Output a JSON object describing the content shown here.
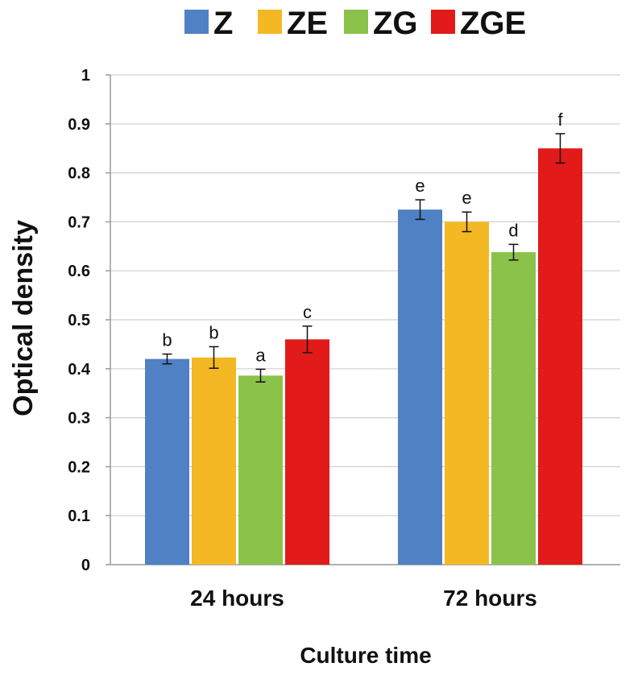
{
  "chart_data": {
    "type": "bar",
    "categories": [
      "24 hours",
      "72 hours"
    ],
    "series": [
      {
        "name": "Z",
        "color": "#4f81c4",
        "values": [
          0.42,
          0.725
        ],
        "errors": [
          0.01,
          0.02
        ],
        "labels": [
          "b",
          "e"
        ]
      },
      {
        "name": "ZE",
        "color": "#f3b823",
        "values": [
          0.423,
          0.7
        ],
        "errors": [
          0.022,
          0.02
        ],
        "labels": [
          "b",
          "e"
        ]
      },
      {
        "name": "ZG",
        "color": "#8ac24a",
        "values": [
          0.386,
          0.638
        ],
        "errors": [
          0.013,
          0.016
        ],
        "labels": [
          "a",
          "d"
        ]
      },
      {
        "name": "ZGE",
        "color": "#e21a1a",
        "values": [
          0.46,
          0.85
        ],
        "errors": [
          0.027,
          0.03
        ],
        "labels": [
          "c",
          "f"
        ]
      }
    ],
    "xlabel": "Culture time",
    "ylabel": "Optical density",
    "ylim": [
      0,
      1
    ],
    "yticks": [
      "0",
      "0.1",
      "0.2",
      "0.3",
      "0.4",
      "0.5",
      "0.6",
      "0.7",
      "0.8",
      "0.9",
      "1"
    ],
    "grid": true,
    "legend_position": "top"
  }
}
